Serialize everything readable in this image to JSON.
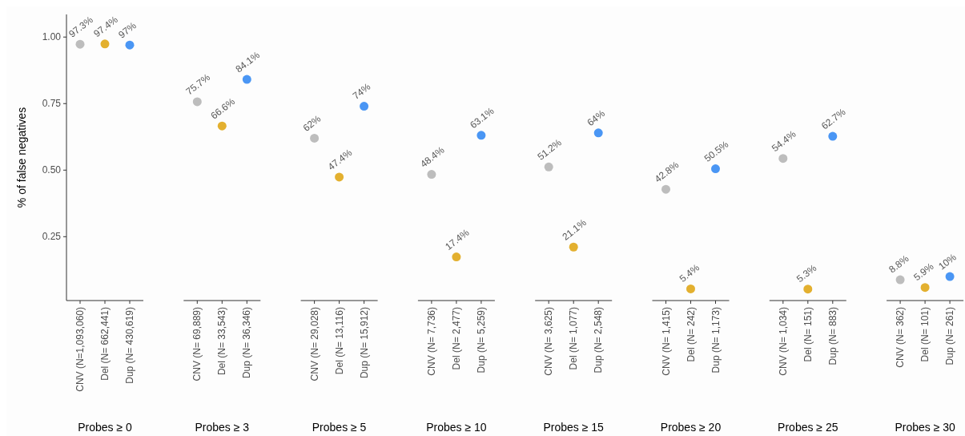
{
  "chart_data": [
    {
      "type": "scatter",
      "ylabel": "% of false negatives",
      "xlabel": "Probes ≥ 0",
      "categories": [
        "CNV (N=1,093,060)",
        "Del (N= 662,441)",
        "Dup (N= 430,619)"
      ],
      "values": [
        0.973,
        0.974,
        0.97
      ],
      "colors": [
        "#bdbdbd",
        "#e3b02f",
        "#4a96f4"
      ],
      "value_labels": [
        "97.3%",
        "97.4%",
        "97%"
      ],
      "ylim": [
        0.01,
        1.085
      ],
      "yticks": [
        0.25,
        {
          "value": 0.5,
          "label": "0.50"
        },
        0.75,
        {
          "value": 1,
          "label": "1.00"
        }
      ],
      "marker": "circle"
    },
    {
      "type": "scatter",
      "xlabel": "Probes ≥ 3",
      "categories": [
        "CNV (N= 69,889)",
        "Del (N= 33,543)",
        "Dup (N= 36,346)"
      ],
      "values": [
        0.757,
        0.666,
        0.841
      ],
      "colors": [
        "#bdbdbd",
        "#e3b02f",
        "#4a96f4"
      ],
      "value_labels": [
        "75.7%",
        "66.6%",
        "84.1%"
      ],
      "tick_labels": "x",
      "marker": "circle"
    },
    {
      "type": "scatter",
      "xlabel": "Probes ≥ 5",
      "categories": [
        "CNV (N= 29,028)",
        "Del (N= 13,116)",
        "Dup (N= 15,912)"
      ],
      "values": [
        0.62,
        0.474,
        0.74
      ],
      "colors": [
        "#bdbdbd",
        "#e3b02f",
        "#4a96f4"
      ],
      "value_labels": [
        "62%",
        "47.4%",
        "74%"
      ],
      "tick_labels": "x",
      "marker": "circle"
    },
    {
      "type": "scatter",
      "xlabel": "Probes ≥ 10",
      "categories": [
        "CNV (N= 7,736)",
        "Del (N= 2,477)",
        "Dup (N= 5,259)"
      ],
      "values": [
        0.484,
        0.174,
        0.631
      ],
      "colors": [
        "#bdbdbd",
        "#e3b02f",
        "#4a96f4"
      ],
      "value_labels": [
        "48.4%",
        "17.4%",
        "63.1%"
      ],
      "tick_labels": "x",
      "marker": "circle"
    },
    {
      "type": "scatter",
      "xlabel": "Probes ≥ 15",
      "categories": [
        "CNV (N= 3,625)",
        "Del (N= 1,077)",
        "Dup (N= 2,548)"
      ],
      "values": [
        0.512,
        0.211,
        0.64
      ],
      "colors": [
        "#bdbdbd",
        "#e3b02f",
        "#4a96f4"
      ],
      "value_labels": [
        "51.2%",
        "21.1%",
        "64%"
      ],
      "tick_labels": "x",
      "marker": "circle"
    },
    {
      "type": "scatter",
      "xlabel": "Probes ≥ 20",
      "categories": [
        "CNV (N= 1,415)",
        "Del (N= 242)",
        "Dup (N= 1,173)"
      ],
      "values": [
        0.428,
        0.054,
        0.505
      ],
      "colors": [
        "#bdbdbd",
        "#e3b02f",
        "#4a96f4"
      ],
      "value_labels": [
        "42.8%",
        "5.4%",
        "50.5%"
      ],
      "tick_labels": "x",
      "marker": "circle"
    },
    {
      "type": "scatter",
      "xlabel": "Probes ≥ 25",
      "categories": [
        "CNV (N= 1,034)",
        "Del (N= 151)",
        "Dup (N= 883)"
      ],
      "values": [
        0.544,
        0.053,
        0.627
      ],
      "colors": [
        "#bdbdbd",
        "#e3b02f",
        "#4a96f4"
      ],
      "value_labels": [
        "54.4%",
        "5.3%",
        "62.7%"
      ],
      "tick_labels": "x",
      "marker": "circle"
    },
    {
      "type": "scatter",
      "xlabel": "Probes ≥ 30",
      "categories": [
        "CNV (N= 362)",
        "Del (N= 101)",
        "Dup (N= 261)"
      ],
      "values": [
        0.088,
        0.059,
        0.1
      ],
      "colors": [
        "#bdbdbd",
        "#e3b02f",
        "#4a96f4"
      ],
      "value_labels": [
        "8.8%",
        "5.9%",
        "10%"
      ],
      "tick_labels": "x",
      "marker": "circle"
    }
  ]
}
